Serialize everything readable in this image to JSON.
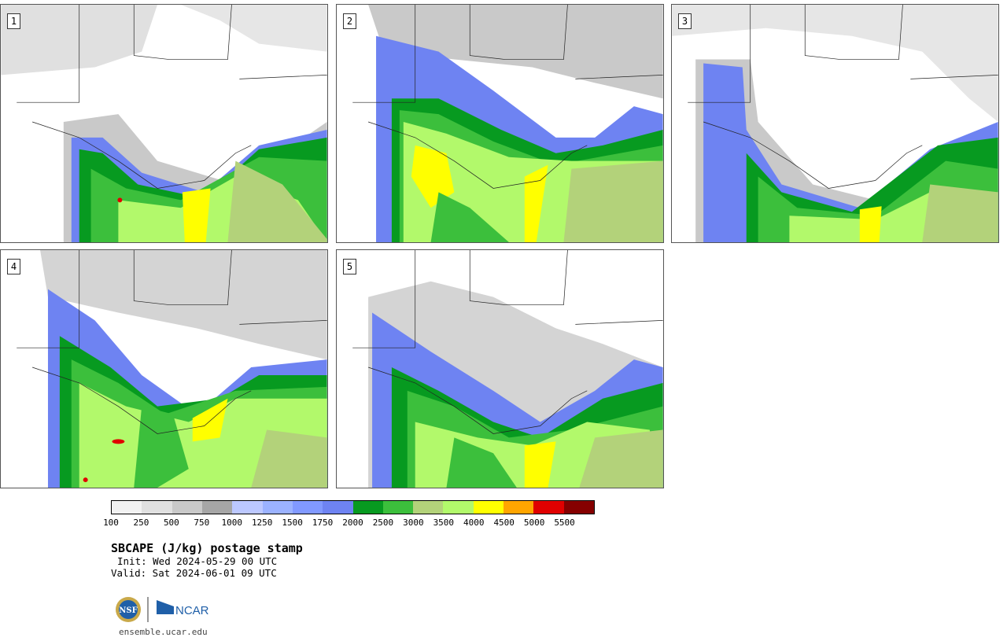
{
  "panels": [
    {
      "label": "1"
    },
    {
      "label": "2"
    },
    {
      "label": "3"
    },
    {
      "label": "4"
    },
    {
      "label": "5"
    }
  ],
  "colorbar": {
    "colors": [
      "#f2f2f2",
      "#e0e0e0",
      "#c9c9c9",
      "#a6a6a6",
      "#bcc8ff",
      "#9bb2ff",
      "#8199ff",
      "#6e83f2",
      "#079a20",
      "#3cbf3c",
      "#b3d27a",
      "#b2f96b",
      "#ffff00",
      "#ffa500",
      "#e00000",
      "#850000"
    ],
    "ticks": [
      "100",
      "250",
      "500",
      "750",
      "1000",
      "1250",
      "1500",
      "1750",
      "2000",
      "2500",
      "3000",
      "3500",
      "4000",
      "4500",
      "5000",
      "5500"
    ]
  },
  "title": "SBCAPE (J/kg) postage stamp",
  "init": "Init: Wed 2024-05-29 00 UTC",
  "valid": "Valid: Sat 2024-06-01 09 UTC",
  "logos": {
    "nsf": "NSF",
    "ncar": "NCAR"
  },
  "footer": "ensemble.ucar.edu"
}
